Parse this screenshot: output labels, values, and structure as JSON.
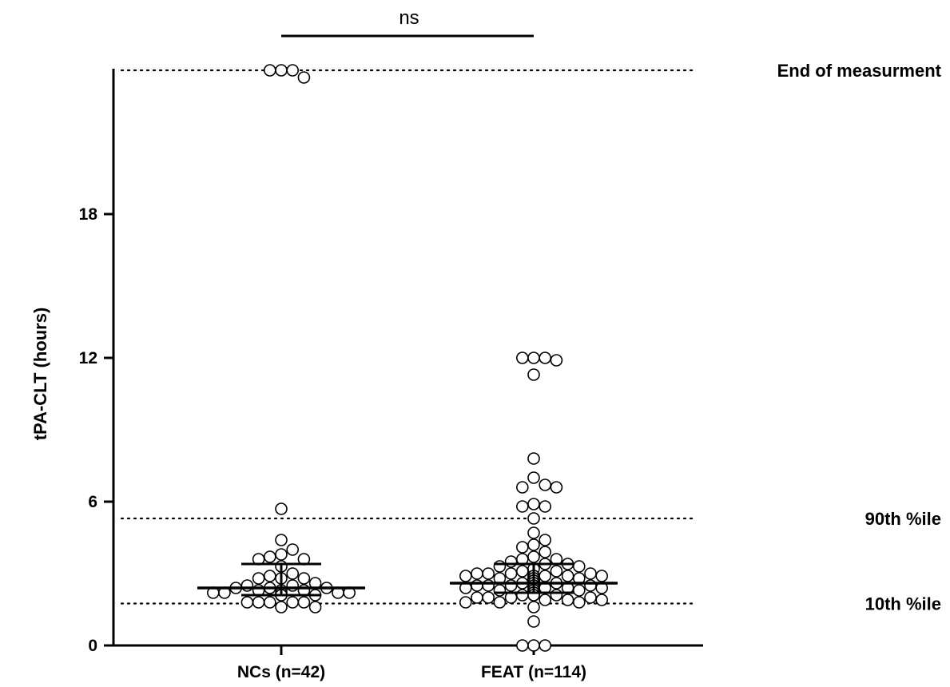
{
  "chart_data": {
    "type": "scatter",
    "subtype": "dot-plot",
    "ylabel": "tPA-CLT (hours)",
    "ylim": [
      0,
      24
    ],
    "y_ticks": [
      0,
      6,
      12,
      18
    ],
    "y_tick_labels": [
      "0",
      "6",
      "12",
      "18"
    ],
    "grid": false,
    "categories": [
      "NCs (n=42)",
      "FEAT (n=114)"
    ],
    "reference_lines": [
      {
        "label": "End of measurment",
        "value": 24.0
      },
      {
        "label": "90th %ile",
        "value": 5.3
      },
      {
        "label": "10th %ile",
        "value": 1.75
      }
    ],
    "significance": {
      "label": "ns",
      "between": [
        0,
        1
      ]
    },
    "series": [
      {
        "category": "NCs (n=42)",
        "median": 2.4,
        "q1": 2.1,
        "q3": 3.4,
        "values": [
          23.7,
          24.0,
          24.0,
          24.0,
          5.7,
          4.4,
          4.0,
          3.8,
          3.7,
          3.6,
          3.6,
          3.3,
          3.0,
          2.9,
          2.8,
          2.8,
          2.8,
          2.6,
          2.5,
          2.5,
          2.4,
          2.4,
          2.4,
          2.3,
          2.3,
          2.3,
          2.2,
          2.2,
          2.2,
          2.2,
          2.2,
          2.1,
          2.1,
          2.1,
          2.1,
          1.8,
          1.8,
          1.8,
          1.8,
          1.8,
          1.6,
          1.6
        ]
      },
      {
        "category": "FEAT (n=114)",
        "median": 2.6,
        "q1": 2.2,
        "q3": 3.4,
        "values": [
          12.0,
          12.0,
          12.0,
          11.9,
          11.3,
          7.8,
          7.0,
          6.7,
          6.6,
          6.6,
          5.9,
          5.8,
          5.8,
          5.3,
          4.7,
          4.4,
          4.2,
          4.1,
          3.9,
          3.7,
          3.6,
          3.6,
          3.5,
          3.4,
          3.4,
          3.3,
          3.3,
          3.2,
          3.1,
          3.1,
          3.0,
          3.0,
          3.0,
          3.0,
          2.9,
          2.9,
          2.9,
          2.9,
          2.9,
          2.9,
          2.8,
          2.8,
          2.8,
          2.8,
          2.8,
          2.8,
          2.8,
          2.7,
          2.7,
          2.7,
          2.7,
          2.7,
          2.7,
          2.7,
          2.7,
          2.6,
          2.6,
          2.6,
          2.6,
          2.6,
          2.6,
          2.6,
          2.6,
          2.6,
          2.6,
          2.5,
          2.5,
          2.5,
          2.5,
          2.5,
          2.5,
          2.5,
          2.5,
          2.4,
          2.4,
          2.4,
          2.4,
          2.4,
          2.4,
          2.4,
          2.4,
          2.3,
          2.3,
          2.3,
          2.3,
          2.3,
          2.3,
          2.3,
          2.2,
          2.2,
          2.2,
          2.2,
          2.2,
          2.2,
          2.1,
          2.1,
          2.1,
          2.1,
          2.1,
          2.0,
          2.0,
          2.0,
          2.0,
          1.9,
          1.9,
          1.9,
          1.8,
          1.8,
          1.8,
          1.6,
          1.0,
          0.0,
          0.0,
          0.0
        ]
      }
    ]
  }
}
